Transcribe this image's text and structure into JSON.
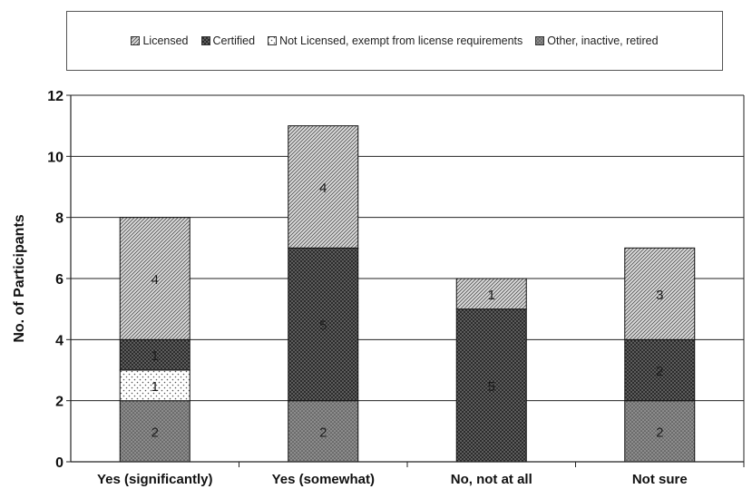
{
  "chart_data": {
    "type": "bar",
    "stacked": true,
    "categories": [
      "Yes (significantly)",
      "Yes (somewhat)",
      "No, not at all",
      "Not sure"
    ],
    "series": [
      {
        "name": "Other, inactive, retired",
        "values": [
          2,
          2,
          0,
          2
        ],
        "labels": [
          "2",
          "2",
          "",
          "2"
        ],
        "pattern": "dots-dark"
      },
      {
        "name": "Not Licensed, exempt from license requirements",
        "values": [
          1,
          0,
          0,
          0
        ],
        "labels": [
          "1",
          "",
          "",
          ""
        ],
        "pattern": "dots-light"
      },
      {
        "name": "Certified",
        "values": [
          1,
          5,
          5,
          2
        ],
        "labels": [
          "1",
          "5",
          "5",
          "2"
        ],
        "pattern": "crosshatch"
      },
      {
        "name": "Licensed",
        "values": [
          4,
          4,
          1,
          3
        ],
        "labels": [
          "4",
          "4",
          "1",
          "3"
        ],
        "pattern": "diagonal"
      }
    ],
    "legend_order": [
      "Licensed",
      "Certified",
      "Not Licensed, exempt from license requirements",
      "Other, inactive, retired"
    ],
    "ylabel": "No. of Participants",
    "xlabel": "",
    "ylim": [
      0,
      12
    ],
    "yticks": [
      "0",
      "2",
      "4",
      "6",
      "8",
      "10",
      "12"
    ],
    "grid": true,
    "legend_position": "top"
  }
}
